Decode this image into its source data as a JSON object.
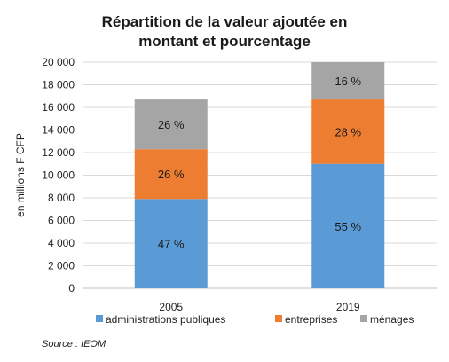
{
  "chart_data": {
    "type": "bar",
    "stacked": true,
    "title_line1": "Répartition de la valeur ajoutée en",
    "title_line2": "montant et pourcentage",
    "ylabel": "en millions F CFP",
    "xlabel": "",
    "categories": [
      "2005",
      "2019"
    ],
    "ylim": [
      0,
      20000
    ],
    "yticks": [
      0,
      2000,
      4000,
      6000,
      8000,
      10000,
      12000,
      14000,
      16000,
      18000,
      20000
    ],
    "ytick_labels": [
      "0",
      "2 000",
      "4 000",
      "6 000",
      "8 000",
      "10 000",
      "12 000",
      "14 000",
      "16 000",
      "18 000",
      "20 000"
    ],
    "grid": true,
    "legend_position": "bottom",
    "series": [
      {
        "name": "administrations publiques",
        "color": "#5b9bd5",
        "values": [
          7900,
          11000
        ],
        "labels": [
          "47 %",
          "55 %"
        ]
      },
      {
        "name": "entreprises",
        "color": "#ed7d31",
        "values": [
          4400,
          5700
        ],
        "labels": [
          "26 %",
          "28 %"
        ]
      },
      {
        "name": "ménages",
        "color": "#a5a5a5",
        "values": [
          4400,
          3300
        ],
        "labels": [
          "26 %",
          "16 %"
        ]
      }
    ]
  },
  "source": "Source : IEOM"
}
